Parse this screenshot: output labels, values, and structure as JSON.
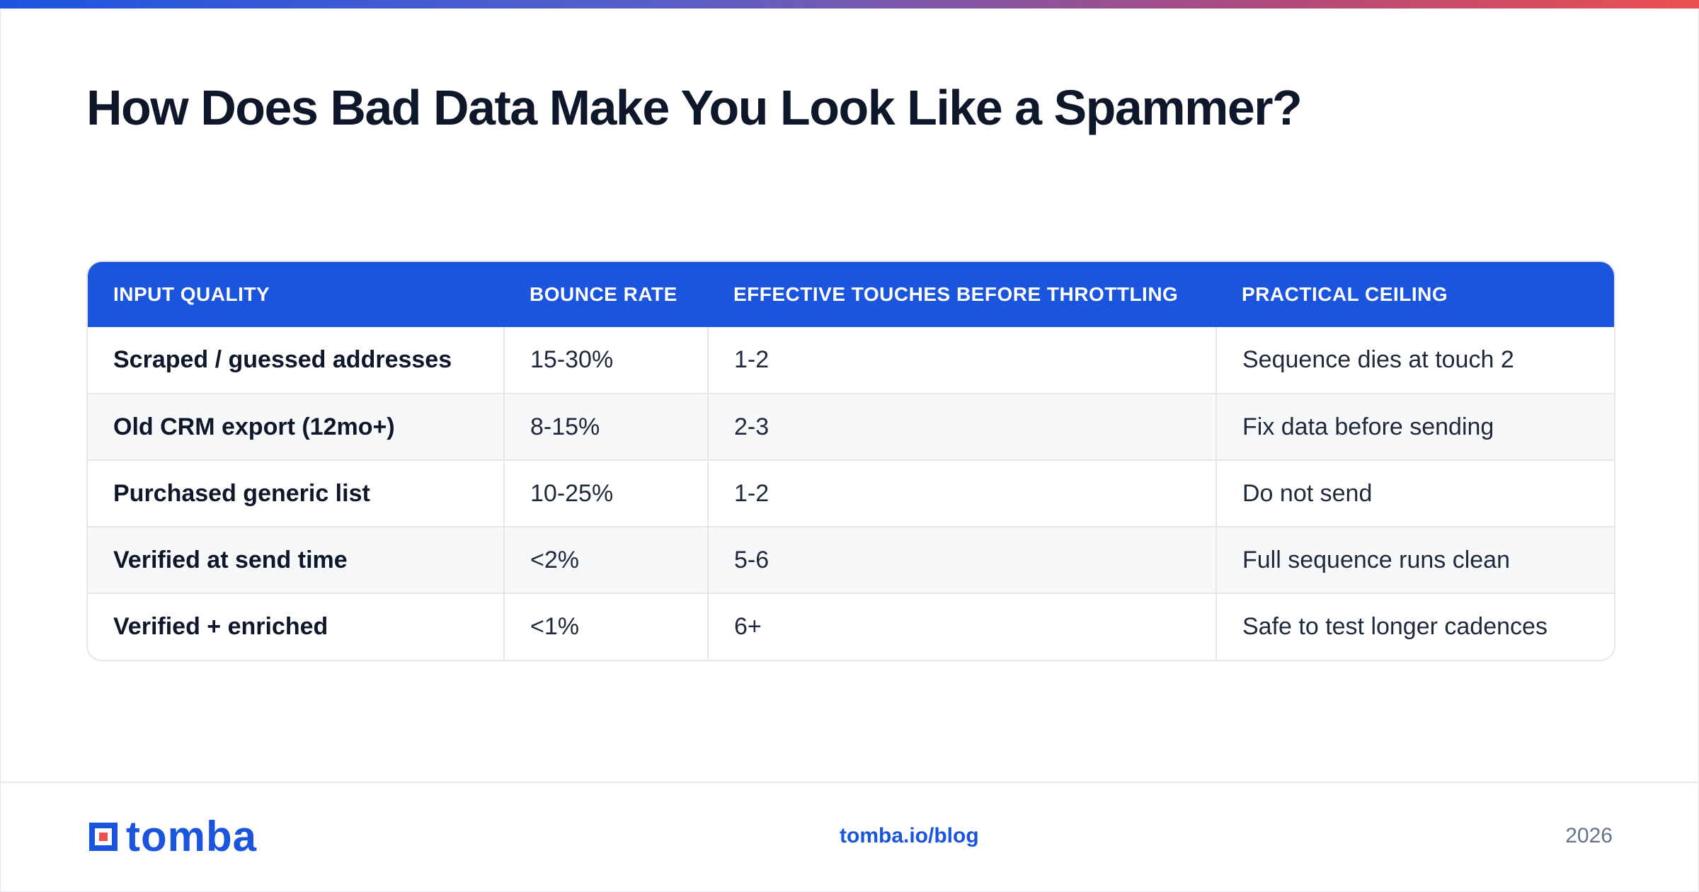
{
  "header": {
    "title": "How Does Bad Data Make You Look Like a Spammer?"
  },
  "table": {
    "columns": [
      "INPUT QUALITY",
      "BOUNCE RATE",
      "EFFECTIVE TOUCHES BEFORE THROTTLING",
      "PRACTICAL CEILING"
    ],
    "rows": [
      [
        "Scraped / guessed addresses",
        "15-30%",
        "1-2",
        "Sequence dies at touch 2"
      ],
      [
        "Old CRM export (12mo+)",
        "8-15%",
        "2-3",
        "Fix data before sending"
      ],
      [
        "Purchased generic list",
        "10-25%",
        "1-2",
        "Do not send"
      ],
      [
        "Verified at send time",
        "<2%",
        "5-6",
        "Full sequence runs clean"
      ],
      [
        "Verified + enriched",
        "<1%",
        "6+",
        "Safe to test longer cadences"
      ]
    ]
  },
  "footer": {
    "logo_text": "tomba",
    "link": "tomba.io/blog",
    "year": "2026"
  },
  "colors": {
    "brand_blue": "#1b55de",
    "brand_red": "#ec4f4f",
    "title_text": "#0f172a"
  },
  "icons": {
    "logo": "tomba-logo-icon"
  }
}
